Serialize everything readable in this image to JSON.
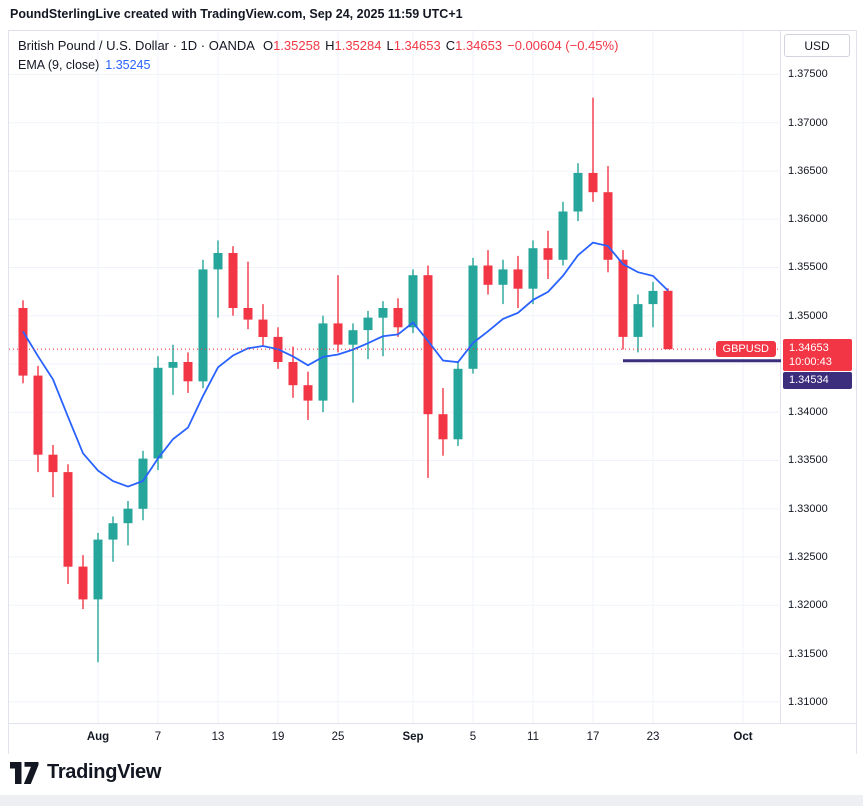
{
  "attribution": "PoundSterlingLive created with TradingView.com, Sep 24, 2025 11:59 UTC+1",
  "legend": {
    "title": "British Pound / U.S. Dollar · 1D · OANDA",
    "ohlc": [
      {
        "label": "O",
        "value": "1.35258"
      },
      {
        "label": "H",
        "value": "1.35284"
      },
      {
        "label": "L",
        "value": "1.34653"
      },
      {
        "label": "C",
        "value": "1.34653"
      }
    ],
    "change": "−0.00604 (−0.45%)",
    "indicator_label": "EMA (9, close)",
    "indicator_value": "1.35245"
  },
  "axis": {
    "currency": "USD",
    "symbol_badge": "GBPUSD",
    "last_price_badge": "1.34653",
    "countdown_badge": "10:00:43",
    "level_badge": "1.34534"
  },
  "footer": {
    "brand": "TradingView"
  },
  "chart_data": {
    "type": "candlestick",
    "symbol": "GBPUSD",
    "timeframe": "1D",
    "title": "British Pound / U.S. Dollar · 1D · OANDA",
    "ylim": [
      1.3078,
      1.3795
    ],
    "x_left": 14,
    "x_spacing": 15,
    "ema_period": 9,
    "ema_seed": 1.3495,
    "ema_last": 1.35245,
    "last_close_line": 1.34653,
    "support_line": {
      "price": 1.34534,
      "x_start_index": 40
    },
    "grid": true,
    "legend_position": "top-left",
    "colors": {
      "up": "#26a69a",
      "down": "#f23645",
      "ema": "#2962ff",
      "last_line": "#f23645",
      "support": "#3c2e7d",
      "grid": "#f0f3fa"
    },
    "y_ticks": [
      {
        "value": 1.375,
        "label": "1.37500"
      },
      {
        "value": 1.37,
        "label": "1.37000"
      },
      {
        "value": 1.365,
        "label": "1.36500"
      },
      {
        "value": 1.36,
        "label": "1.36000"
      },
      {
        "value": 1.355,
        "label": "1.35500"
      },
      {
        "value": 1.35,
        "label": "1.35000"
      },
      {
        "value": 1.345,
        "label": "1.34500"
      },
      {
        "value": 1.34,
        "label": "1.34000"
      },
      {
        "value": 1.335,
        "label": "1.33500"
      },
      {
        "value": 1.33,
        "label": "1.33000"
      },
      {
        "value": 1.325,
        "label": "1.32500"
      },
      {
        "value": 1.32,
        "label": "1.32000"
      },
      {
        "value": 1.315,
        "label": "1.31500"
      },
      {
        "value": 1.31,
        "label": "1.31000"
      }
    ],
    "x_ticks": [
      {
        "label": "Aug",
        "index": 5,
        "major": true
      },
      {
        "label": "7",
        "index": 9,
        "major": false
      },
      {
        "label": "13",
        "index": 13,
        "major": false
      },
      {
        "label": "19",
        "index": 17,
        "major": false
      },
      {
        "label": "25",
        "index": 21,
        "major": false
      },
      {
        "label": "Sep",
        "index": 26,
        "major": true
      },
      {
        "label": "5",
        "index": 30,
        "major": false
      },
      {
        "label": "11",
        "index": 34,
        "major": false
      },
      {
        "label": "17",
        "index": 38,
        "major": false
      },
      {
        "label": "23",
        "index": 42,
        "major": false
      },
      {
        "label": "Oct",
        "index": 48,
        "major": true
      }
    ],
    "ohlc": [
      {
        "d": "Jul 25",
        "o": 1.3508,
        "h": 1.3516,
        "l": 1.343,
        "c": 1.3438
      },
      {
        "d": "Jul 28",
        "o": 1.3438,
        "h": 1.3448,
        "l": 1.3338,
        "c": 1.3356
      },
      {
        "d": "Jul 29",
        "o": 1.3356,
        "h": 1.3366,
        "l": 1.3312,
        "c": 1.3338
      },
      {
        "d": "Jul 30",
        "o": 1.3338,
        "h": 1.3346,
        "l": 1.3222,
        "c": 1.324
      },
      {
        "d": "Jul 31",
        "o": 1.324,
        "h": 1.3252,
        "l": 1.3196,
        "c": 1.3206
      },
      {
        "d": "Aug 1",
        "o": 1.3206,
        "h": 1.3275,
        "l": 1.3141,
        "c": 1.3268
      },
      {
        "d": "Aug 4",
        "o": 1.3268,
        "h": 1.3292,
        "l": 1.3245,
        "c": 1.3285
      },
      {
        "d": "Aug 5",
        "o": 1.3285,
        "h": 1.3308,
        "l": 1.3262,
        "c": 1.33
      },
      {
        "d": "Aug 6",
        "o": 1.33,
        "h": 1.336,
        "l": 1.3288,
        "c": 1.3352
      },
      {
        "d": "Aug 7",
        "o": 1.3352,
        "h": 1.3458,
        "l": 1.334,
        "c": 1.3446
      },
      {
        "d": "Aug 8",
        "o": 1.3446,
        "h": 1.347,
        "l": 1.3418,
        "c": 1.3452
      },
      {
        "d": "Aug 11",
        "o": 1.3452,
        "h": 1.3462,
        "l": 1.342,
        "c": 1.3432
      },
      {
        "d": "Aug 12",
        "o": 1.3432,
        "h": 1.3558,
        "l": 1.3425,
        "c": 1.3548
      },
      {
        "d": "Aug 13",
        "o": 1.3548,
        "h": 1.3578,
        "l": 1.3498,
        "c": 1.3565
      },
      {
        "d": "Aug 14",
        "o": 1.3565,
        "h": 1.3572,
        "l": 1.35,
        "c": 1.3508
      },
      {
        "d": "Aug 15",
        "o": 1.3508,
        "h": 1.3556,
        "l": 1.3486,
        "c": 1.3496
      },
      {
        "d": "Aug 18",
        "o": 1.3496,
        "h": 1.3512,
        "l": 1.3468,
        "c": 1.3478
      },
      {
        "d": "Aug 19",
        "o": 1.3478,
        "h": 1.3488,
        "l": 1.3445,
        "c": 1.3452
      },
      {
        "d": "Aug 20",
        "o": 1.3452,
        "h": 1.3468,
        "l": 1.3415,
        "c": 1.3428
      },
      {
        "d": "Aug 21",
        "o": 1.3428,
        "h": 1.3442,
        "l": 1.3392,
        "c": 1.3412
      },
      {
        "d": "Aug 22",
        "o": 1.3412,
        "h": 1.35,
        "l": 1.34,
        "c": 1.3492
      },
      {
        "d": "Aug 25",
        "o": 1.3492,
        "h": 1.3542,
        "l": 1.3462,
        "c": 1.347
      },
      {
        "d": "Aug 26",
        "o": 1.347,
        "h": 1.3492,
        "l": 1.341,
        "c": 1.3485
      },
      {
        "d": "Aug 27",
        "o": 1.3485,
        "h": 1.3505,
        "l": 1.3455,
        "c": 1.3498
      },
      {
        "d": "Aug 28",
        "o": 1.3498,
        "h": 1.3515,
        "l": 1.3458,
        "c": 1.3508
      },
      {
        "d": "Aug 29",
        "o": 1.3508,
        "h": 1.3518,
        "l": 1.3478,
        "c": 1.3488
      },
      {
        "d": "Sep 1",
        "o": 1.3488,
        "h": 1.3548,
        "l": 1.3482,
        "c": 1.3542
      },
      {
        "d": "Sep 2",
        "o": 1.3542,
        "h": 1.3552,
        "l": 1.3332,
        "c": 1.3398
      },
      {
        "d": "Sep 3",
        "o": 1.3398,
        "h": 1.3425,
        "l": 1.3355,
        "c": 1.3372
      },
      {
        "d": "Sep 4",
        "o": 1.3372,
        "h": 1.3452,
        "l": 1.3365,
        "c": 1.3445
      },
      {
        "d": "Sep 5",
        "o": 1.3445,
        "h": 1.356,
        "l": 1.344,
        "c": 1.3552
      },
      {
        "d": "Sep 8",
        "o": 1.3552,
        "h": 1.3568,
        "l": 1.3522,
        "c": 1.3532
      },
      {
        "d": "Sep 9",
        "o": 1.3532,
        "h": 1.3558,
        "l": 1.3512,
        "c": 1.3548
      },
      {
        "d": "Sep 10",
        "o": 1.3548,
        "h": 1.3562,
        "l": 1.3508,
        "c": 1.3528
      },
      {
        "d": "Sep 11",
        "o": 1.3528,
        "h": 1.3578,
        "l": 1.3512,
        "c": 1.357
      },
      {
        "d": "Sep 12",
        "o": 1.357,
        "h": 1.3588,
        "l": 1.3538,
        "c": 1.3558
      },
      {
        "d": "Sep 15",
        "o": 1.3558,
        "h": 1.3618,
        "l": 1.3552,
        "c": 1.3608
      },
      {
        "d": "Sep 16",
        "o": 1.3608,
        "h": 1.3658,
        "l": 1.3598,
        "c": 1.3648
      },
      {
        "d": "Sep 17",
        "o": 1.3648,
        "h": 1.3726,
        "l": 1.3618,
        "c": 1.3628
      },
      {
        "d": "Sep 18",
        "o": 1.3628,
        "h": 1.3655,
        "l": 1.3545,
        "c": 1.3558
      },
      {
        "d": "Sep 19",
        "o": 1.3558,
        "h": 1.3568,
        "l": 1.3465,
        "c": 1.3478
      },
      {
        "d": "Sep 22",
        "o": 1.3478,
        "h": 1.3522,
        "l": 1.3462,
        "c": 1.3512
      },
      {
        "d": "Sep 23",
        "o": 1.3512,
        "h": 1.3535,
        "l": 1.3488,
        "c": 1.35257
      },
      {
        "d": "Sep 24",
        "o": 1.35258,
        "h": 1.35284,
        "l": 1.34653,
        "c": 1.34653
      }
    ]
  }
}
